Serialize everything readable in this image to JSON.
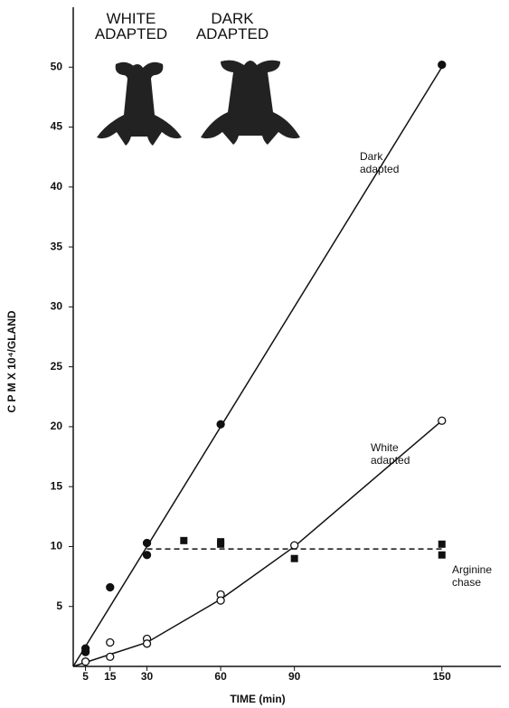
{
  "chart_data": {
    "type": "scatter",
    "headers": [
      "WHITE ADAPTED",
      "DARK ADAPTED"
    ],
    "x_label": "TIME (min)",
    "y_label": "C P M X 10⁴/GLAND",
    "xlim": [
      0,
      174
    ],
    "ylim": [
      0,
      55
    ],
    "xticks": [
      5,
      15,
      30,
      60,
      90,
      150
    ],
    "yticks": [
      5,
      10,
      15,
      20,
      25,
      30,
      35,
      40,
      45,
      50
    ],
    "series": [
      {
        "name": "Dark adapted",
        "color": "#111111",
        "marker": "filled-circle",
        "x": [
          5,
          5,
          15,
          30,
          30,
          60,
          150
        ],
        "values": [
          1.5,
          1.2,
          6.6,
          10.3,
          9.3,
          20.2,
          50.2
        ],
        "curve": {
          "dash": false,
          "x": [
            0,
            150
          ],
          "values": [
            0,
            50
          ]
        }
      },
      {
        "name": "White adapted",
        "color": "#111111",
        "marker": "open-circle",
        "x": [
          5,
          15,
          15,
          30,
          30,
          60,
          60,
          90,
          150
        ],
        "values": [
          0.4,
          2.0,
          0.8,
          2.3,
          1.9,
          6.0,
          5.5,
          10.1,
          20.5
        ],
        "curve": {
          "dash": false,
          "x": [
            0,
            30,
            60,
            90,
            150
          ],
          "values": [
            0,
            2,
            5.6,
            10,
            20.5
          ]
        }
      },
      {
        "name": "Arginine chase",
        "color": "#111111",
        "marker": "filled-square",
        "x": [
          45,
          60,
          60,
          90,
          150,
          150
        ],
        "values": [
          10.5,
          10.4,
          10.2,
          9.0,
          10.2,
          9.3
        ],
        "curve": {
          "dash": true,
          "x": [
            30,
            150
          ],
          "values": [
            9.8,
            9.8
          ]
        }
      }
    ]
  }
}
